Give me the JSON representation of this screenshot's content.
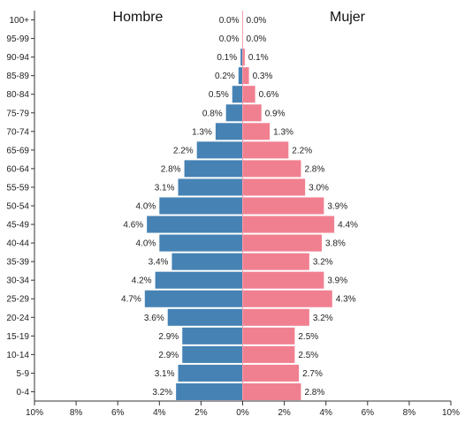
{
  "chart_data": {
    "type": "bar",
    "orientation": "horizontal-butterfly",
    "categories": [
      "100+",
      "95-99",
      "90-94",
      "85-89",
      "80-84",
      "75-79",
      "70-74",
      "65-69",
      "60-64",
      "55-59",
      "50-54",
      "45-49",
      "40-44",
      "35-39",
      "30-34",
      "25-29",
      "20-24",
      "15-19",
      "10-14",
      "5-9",
      "0-4"
    ],
    "series": [
      {
        "name": "Hombre",
        "side": "left",
        "color": "#4682B4",
        "values": [
          0.0,
          0.0,
          0.1,
          0.2,
          0.5,
          0.8,
          1.3,
          2.2,
          2.8,
          3.1,
          4.0,
          4.6,
          4.0,
          3.4,
          4.2,
          4.7,
          3.6,
          2.9,
          2.9,
          3.1,
          3.2
        ],
        "labels": [
          "0.0%",
          "0.0%",
          "0.1%",
          "0.2%",
          "0.5%",
          "0.8%",
          "1.3%",
          "2.2%",
          "2.8%",
          "3.1%",
          "4.0%",
          "4.6%",
          "4.0%",
          "3.4%",
          "4.2%",
          "4.7%",
          "3.6%",
          "2.9%",
          "2.9%",
          "3.1%",
          "3.2%"
        ]
      },
      {
        "name": "Mujer",
        "side": "right",
        "color": "#F08090",
        "values": [
          0.0,
          0.0,
          0.1,
          0.3,
          0.6,
          0.9,
          1.3,
          2.2,
          2.8,
          3.0,
          3.9,
          4.4,
          3.8,
          3.2,
          3.9,
          4.3,
          3.2,
          2.5,
          2.5,
          2.7,
          2.8
        ],
        "labels": [
          "0.0%",
          "0.0%",
          "0.1%",
          "0.3%",
          "0.6%",
          "0.9%",
          "1.3%",
          "2.2%",
          "2.8%",
          "3.0%",
          "3.9%",
          "4.4%",
          "3.8%",
          "3.2%",
          "3.9%",
          "4.3%",
          "3.2%",
          "2.5%",
          "2.5%",
          "2.7%",
          "2.8%"
        ]
      }
    ],
    "xlim": [
      -10,
      10
    ],
    "xticks": [
      -10,
      -8,
      -6,
      -4,
      -2,
      0,
      2,
      4,
      6,
      8,
      10
    ],
    "xtick_labels": [
      "10%",
      "8%",
      "6%",
      "4%",
      "2%",
      "0%",
      "2%",
      "4%",
      "6%",
      "8%",
      "10%"
    ],
    "title": "",
    "xlabel": "",
    "ylabel": "",
    "grid": false,
    "legend": "none"
  }
}
